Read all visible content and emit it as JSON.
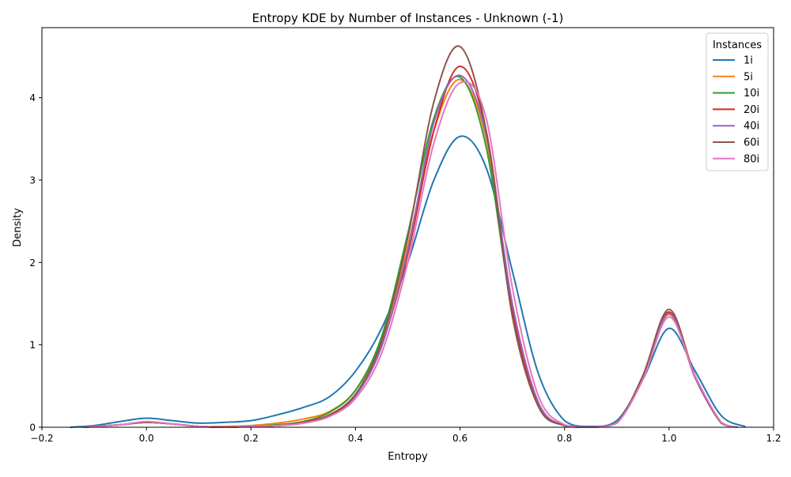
{
  "chart_data": {
    "type": "line",
    "title": "Entropy KDE by Number of Instances - Unknown (-1)",
    "xlabel": "Entropy",
    "ylabel": "Density",
    "xlim": [
      -0.2,
      1.2
    ],
    "ylim": [
      0,
      4.85
    ],
    "xticks": [
      -0.2,
      0.0,
      0.2,
      0.4,
      0.6,
      0.8,
      1.0,
      1.2
    ],
    "xtick_labels": [
      "−0.2",
      "0.0",
      "0.2",
      "0.4",
      "0.6",
      "0.8",
      "1.0",
      "1.2"
    ],
    "yticks": [
      0,
      1,
      2,
      3,
      4
    ],
    "ytick_labels": [
      "0",
      "1",
      "2",
      "3",
      "4"
    ],
    "grid": false,
    "legend": {
      "title": "Instances",
      "placement": "top-right"
    },
    "series": [
      {
        "name": "1i",
        "color": "#1f77b4",
        "x": [
          -0.145,
          -0.1,
          -0.05,
          0.0,
          0.05,
          0.1,
          0.15,
          0.2,
          0.25,
          0.3,
          0.35,
          0.4,
          0.45,
          0.5,
          0.55,
          0.6,
          0.65,
          0.7,
          0.75,
          0.8,
          0.85,
          0.9,
          0.95,
          1.0,
          1.05,
          1.1,
          1.145
        ],
        "y": [
          0.0,
          0.02,
          0.07,
          0.11,
          0.08,
          0.05,
          0.06,
          0.08,
          0.15,
          0.24,
          0.37,
          0.68,
          1.2,
          2.0,
          3.0,
          3.53,
          3.15,
          1.9,
          0.65,
          0.08,
          0.01,
          0.08,
          0.58,
          1.2,
          0.68,
          0.14,
          0.01
        ]
      },
      {
        "name": "5i",
        "color": "#ff7f0e",
        "x": [
          -0.12,
          -0.05,
          0.0,
          0.05,
          0.1,
          0.15,
          0.2,
          0.25,
          0.3,
          0.35,
          0.4,
          0.45,
          0.5,
          0.55,
          0.6,
          0.65,
          0.7,
          0.75,
          0.8,
          0.85,
          0.9,
          0.95,
          1.0,
          1.05,
          1.1,
          1.13
        ],
        "y": [
          0.0,
          0.03,
          0.06,
          0.04,
          0.01,
          0.01,
          0.02,
          0.05,
          0.1,
          0.19,
          0.45,
          1.05,
          2.2,
          3.6,
          4.22,
          3.5,
          1.5,
          0.3,
          0.02,
          0.0,
          0.05,
          0.6,
          1.37,
          0.6,
          0.05,
          0.0
        ]
      },
      {
        "name": "10i",
        "color": "#2ca02c",
        "x": [
          -0.12,
          -0.05,
          0.0,
          0.05,
          0.1,
          0.15,
          0.2,
          0.25,
          0.3,
          0.35,
          0.4,
          0.45,
          0.5,
          0.55,
          0.6,
          0.65,
          0.7,
          0.75,
          0.8,
          0.85,
          0.9,
          0.95,
          1.0,
          1.05,
          1.1,
          1.13
        ],
        "y": [
          0.0,
          0.03,
          0.06,
          0.04,
          0.01,
          0.0,
          0.01,
          0.03,
          0.07,
          0.18,
          0.45,
          1.1,
          2.35,
          3.75,
          4.25,
          3.4,
          1.4,
          0.27,
          0.02,
          0.0,
          0.05,
          0.62,
          1.39,
          0.6,
          0.05,
          0.0
        ]
      },
      {
        "name": "20i",
        "color": "#d62728",
        "x": [
          -0.12,
          -0.05,
          0.0,
          0.05,
          0.1,
          0.15,
          0.2,
          0.25,
          0.3,
          0.35,
          0.4,
          0.45,
          0.5,
          0.55,
          0.6,
          0.65,
          0.7,
          0.75,
          0.8,
          0.85,
          0.9,
          0.95,
          1.0,
          1.05,
          1.1,
          1.13
        ],
        "y": [
          0.0,
          0.03,
          0.06,
          0.04,
          0.01,
          0.0,
          0.01,
          0.02,
          0.06,
          0.15,
          0.4,
          1.0,
          2.1,
          3.6,
          4.38,
          3.6,
          1.45,
          0.27,
          0.02,
          0.0,
          0.05,
          0.62,
          1.4,
          0.6,
          0.05,
          0.0
        ]
      },
      {
        "name": "40i",
        "color": "#9467bd",
        "x": [
          -0.12,
          -0.05,
          0.0,
          0.05,
          0.1,
          0.15,
          0.2,
          0.25,
          0.3,
          0.35,
          0.4,
          0.45,
          0.5,
          0.55,
          0.6,
          0.65,
          0.7,
          0.75,
          0.8,
          0.85,
          0.9,
          0.95,
          1.0,
          1.05,
          1.1,
          1.13
        ],
        "y": [
          0.0,
          0.03,
          0.06,
          0.04,
          0.01,
          0.0,
          0.01,
          0.02,
          0.05,
          0.14,
          0.38,
          0.98,
          2.15,
          3.7,
          4.27,
          3.55,
          1.5,
          0.3,
          0.02,
          0.0,
          0.05,
          0.6,
          1.38,
          0.6,
          0.05,
          0.0
        ]
      },
      {
        "name": "60i",
        "color": "#8c564b",
        "x": [
          -0.12,
          -0.05,
          0.0,
          0.05,
          0.1,
          0.15,
          0.2,
          0.25,
          0.3,
          0.35,
          0.4,
          0.45,
          0.5,
          0.55,
          0.6,
          0.65,
          0.7,
          0.75,
          0.8,
          0.85,
          0.9,
          0.95,
          1.0,
          1.05,
          1.1,
          1.13
        ],
        "y": [
          0.0,
          0.03,
          0.06,
          0.04,
          0.01,
          0.0,
          0.01,
          0.02,
          0.05,
          0.14,
          0.4,
          1.05,
          2.3,
          3.95,
          4.62,
          3.6,
          1.35,
          0.25,
          0.02,
          0.0,
          0.05,
          0.63,
          1.43,
          0.62,
          0.05,
          0.0
        ]
      },
      {
        "name": "80i",
        "color": "#e377c2",
        "x": [
          -0.12,
          -0.05,
          0.0,
          0.05,
          0.1,
          0.15,
          0.2,
          0.25,
          0.3,
          0.35,
          0.4,
          0.45,
          0.5,
          0.55,
          0.6,
          0.65,
          0.7,
          0.75,
          0.8,
          0.85,
          0.9,
          0.95,
          1.0,
          1.05,
          1.1,
          1.13
        ],
        "y": [
          0.0,
          0.03,
          0.07,
          0.04,
          0.01,
          0.0,
          0.01,
          0.02,
          0.05,
          0.13,
          0.35,
          0.9,
          2.0,
          3.45,
          4.18,
          3.75,
          1.7,
          0.38,
          0.03,
          0.0,
          0.05,
          0.58,
          1.34,
          0.62,
          0.06,
          0.0
        ]
      }
    ]
  }
}
